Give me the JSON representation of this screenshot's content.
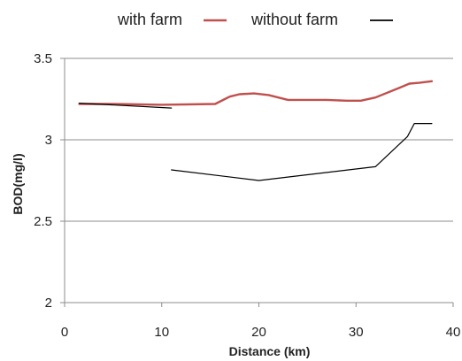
{
  "chart_data": {
    "type": "line",
    "xlabel": "Distance (km)",
    "ylabel": "BOD(mg/l)",
    "xlim": [
      0,
      40
    ],
    "ylim": [
      2,
      3.5
    ],
    "x_ticks": [
      "0",
      "10",
      "20",
      "30",
      "40"
    ],
    "y_ticks": [
      "2",
      "2.5",
      "3",
      "3.5"
    ],
    "grid": "horizontal",
    "legend": {
      "placement": "top"
    },
    "series": [
      {
        "name": "with farm",
        "color": "#c0504d",
        "x": [
          1.5,
          5,
          10,
          15.5,
          17,
          18,
          19.5,
          21,
          23,
          25,
          27,
          29,
          30.5,
          32,
          34.5,
          35.5,
          36.5,
          37.8
        ],
        "y": [
          3.22,
          3.22,
          3.215,
          3.22,
          3.265,
          3.28,
          3.285,
          3.275,
          3.245,
          3.245,
          3.245,
          3.24,
          3.24,
          3.26,
          3.32,
          3.345,
          3.35,
          3.36
        ]
      },
      {
        "name": "without farm",
        "color": "#000000",
        "x": [
          1.5,
          11
        ],
        "y": [
          3.225,
          3.195
        ]
      },
      {
        "name": "without farm",
        "color": "#000000",
        "show_in_legend": false,
        "x": [
          11,
          20,
          32,
          35.3,
          36,
          37.8
        ],
        "y": [
          2.815,
          2.75,
          2.835,
          3.02,
          3.1,
          3.1
        ]
      }
    ]
  }
}
